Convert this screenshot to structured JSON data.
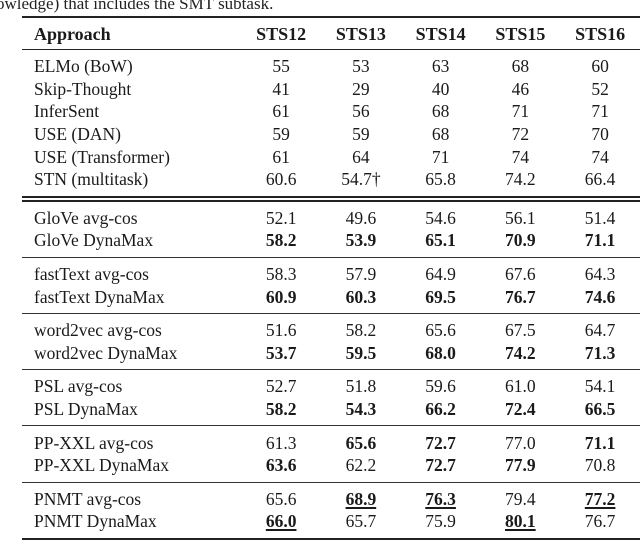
{
  "caption_tail": "owledge) that includes the SMT subtask.",
  "table": {
    "headers": [
      "Approach",
      "STS12",
      "STS13",
      "STS14",
      "STS15",
      "STS16"
    ],
    "baselines": [
      {
        "name": "ELMo (BoW)",
        "values": [
          "55",
          "53",
          "63",
          "68",
          "60"
        ]
      },
      {
        "name": "Skip-Thought",
        "values": [
          "41",
          "29",
          "40",
          "46",
          "52"
        ]
      },
      {
        "name": "InferSent",
        "values": [
          "61",
          "56",
          "68",
          "71",
          "71"
        ]
      },
      {
        "name": "USE (DAN)",
        "values": [
          "59",
          "59",
          "68",
          "72",
          "70"
        ]
      },
      {
        "name": "USE (Transformer)",
        "values": [
          "61",
          "64",
          "71",
          "74",
          "74"
        ]
      },
      {
        "name": "STN (multitask)",
        "values": [
          "60.6",
          "54.7†",
          "65.8",
          "74.2",
          "66.4"
        ]
      }
    ],
    "groups": [
      {
        "rows": [
          {
            "name": "GloVe avg-cos",
            "values": [
              "52.1",
              "49.6",
              "54.6",
              "56.1",
              "51.4"
            ],
            "bold": [
              false,
              false,
              false,
              false,
              false
            ],
            "underline": [
              false,
              false,
              false,
              false,
              false
            ]
          },
          {
            "name": "GloVe DynaMax",
            "values": [
              "58.2",
              "53.9",
              "65.1",
              "70.9",
              "71.1"
            ],
            "bold": [
              true,
              true,
              true,
              true,
              true
            ],
            "underline": [
              false,
              false,
              false,
              false,
              false
            ]
          }
        ]
      },
      {
        "rows": [
          {
            "name": "fastText avg-cos",
            "values": [
              "58.3",
              "57.9",
              "64.9",
              "67.6",
              "64.3"
            ],
            "bold": [
              false,
              false,
              false,
              false,
              false
            ],
            "underline": [
              false,
              false,
              false,
              false,
              false
            ]
          },
          {
            "name": "fastText DynaMax",
            "values": [
              "60.9",
              "60.3",
              "69.5",
              "76.7",
              "74.6"
            ],
            "bold": [
              true,
              true,
              true,
              true,
              true
            ],
            "underline": [
              false,
              false,
              false,
              false,
              false
            ]
          }
        ]
      },
      {
        "rows": [
          {
            "name": "word2vec avg-cos",
            "values": [
              "51.6",
              "58.2",
              "65.6",
              "67.5",
              "64.7"
            ],
            "bold": [
              false,
              false,
              false,
              false,
              false
            ],
            "underline": [
              false,
              false,
              false,
              false,
              false
            ]
          },
          {
            "name": "word2vec DynaMax",
            "values": [
              "53.7",
              "59.5",
              "68.0",
              "74.2",
              "71.3"
            ],
            "bold": [
              true,
              true,
              true,
              true,
              true
            ],
            "underline": [
              false,
              false,
              false,
              false,
              false
            ]
          }
        ]
      },
      {
        "rows": [
          {
            "name": "PSL avg-cos",
            "values": [
              "52.7",
              "51.8",
              "59.6",
              "61.0",
              "54.1"
            ],
            "bold": [
              false,
              false,
              false,
              false,
              false
            ],
            "underline": [
              false,
              false,
              false,
              false,
              false
            ]
          },
          {
            "name": "PSL DynaMax",
            "values": [
              "58.2",
              "54.3",
              "66.2",
              "72.4",
              "66.5"
            ],
            "bold": [
              true,
              true,
              true,
              true,
              true
            ],
            "underline": [
              false,
              false,
              false,
              false,
              false
            ]
          }
        ]
      },
      {
        "rows": [
          {
            "name": "PP-XXL avg-cos",
            "values": [
              "61.3",
              "65.6",
              "72.7",
              "77.0",
              "71.1"
            ],
            "bold": [
              false,
              true,
              true,
              false,
              true
            ],
            "underline": [
              false,
              false,
              false,
              false,
              false
            ]
          },
          {
            "name": "PP-XXL DynaMax",
            "values": [
              "63.6",
              "62.2",
              "72.7",
              "77.9",
              "70.8"
            ],
            "bold": [
              true,
              false,
              true,
              true,
              false
            ],
            "underline": [
              false,
              false,
              false,
              false,
              false
            ]
          }
        ]
      },
      {
        "rows": [
          {
            "name": "PNMT avg-cos",
            "values": [
              "65.6",
              "68.9",
              "76.3",
              "79.4",
              "77.2"
            ],
            "bold": [
              false,
              true,
              true,
              false,
              true
            ],
            "underline": [
              false,
              true,
              true,
              false,
              true
            ]
          },
          {
            "name": "PNMT DynaMax",
            "values": [
              "66.0",
              "65.7",
              "75.9",
              "80.1",
              "76.7"
            ],
            "bold": [
              true,
              false,
              false,
              true,
              false
            ],
            "underline": [
              true,
              false,
              false,
              true,
              false
            ]
          }
        ]
      }
    ]
  }
}
